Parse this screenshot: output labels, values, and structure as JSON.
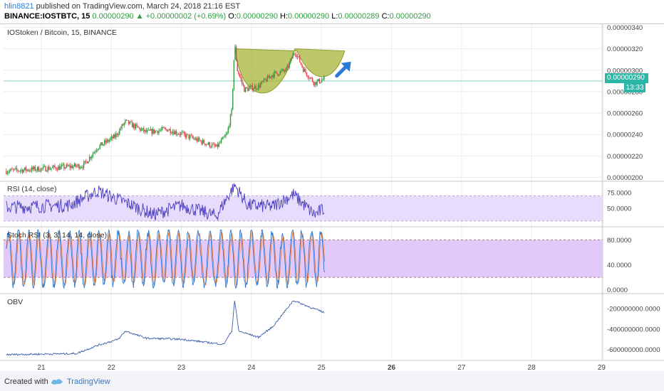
{
  "header": {
    "user": "hlin8821",
    "published": "published on TradingView.com, March 24, 2018 21:16 EST",
    "symbol": "BINANCE:IOSTBTC, 15",
    "price": "0.00000290",
    "change": "+0.00000002 (+0.69%)",
    "o_label": "O:",
    "o_value": "0.00000290",
    "h_label": "H:",
    "h_value": "0.00000290",
    "l_label": "L:",
    "l_value": "0.00000289",
    "c_label": "C:",
    "c_value": "0.00000290"
  },
  "footer": {
    "created": "Created with",
    "brand": "TradingView"
  },
  "price_tag": "0.00000290",
  "time_tag": "13:33",
  "colors": {
    "up": "#2e9d3f",
    "down": "#e0454f",
    "rsi_line": "#4a3fc2",
    "rsi_band": "#e7dcfb",
    "stoch_band": "#e2c9fb",
    "stoch_k": "#2a7ad6",
    "stoch_d": "#e07a3c",
    "obv_line": "#3b5ea8",
    "cup": "#a8b53a",
    "arrow": "#2a7ad6",
    "grid": "#ececec"
  },
  "chart_data": [
    {
      "type": "candlestick",
      "title": "IOStoken / Bitcoin, 15, BINANCE",
      "x_ticks": [
        "21",
        "22",
        "23",
        "24",
        "25",
        "26",
        "27",
        "28",
        "29"
      ],
      "y_ticks": [
        "0.00000340",
        "0.00000320",
        "0.00000300",
        "0.00000280",
        "0.00000260",
        "0.00000240",
        "0.00000220",
        "0.00000200"
      ],
      "ylim": [
        1.97e-06,
        3.43e-06
      ],
      "last_price": 2.9e-06,
      "anchors": [
        {
          "day": 20.5,
          "price": 2.06e-06
        },
        {
          "day": 21.0,
          "price": 2.08e-06
        },
        {
          "day": 21.6,
          "price": 2.11e-06
        },
        {
          "day": 21.8,
          "price": 2.28e-06
        },
        {
          "day": 22.05,
          "price": 2.38e-06
        },
        {
          "day": 22.2,
          "price": 2.52e-06
        },
        {
          "day": 22.5,
          "price": 2.42e-06
        },
        {
          "day": 22.8,
          "price": 2.45e-06
        },
        {
          "day": 23.1,
          "price": 2.38e-06
        },
        {
          "day": 23.5,
          "price": 2.28e-06
        },
        {
          "day": 23.65,
          "price": 2.4e-06
        },
        {
          "day": 23.72,
          "price": 2.62e-06
        },
        {
          "day": 23.76,
          "price": 3.25e-06
        },
        {
          "day": 23.8,
          "price": 3e-06
        },
        {
          "day": 23.9,
          "price": 2.82e-06
        },
        {
          "day": 24.1,
          "price": 2.85e-06
        },
        {
          "day": 24.3,
          "price": 2.96e-06
        },
        {
          "day": 24.5,
          "price": 3e-06
        },
        {
          "day": 24.62,
          "price": 3.18e-06
        },
        {
          "day": 24.75,
          "price": 3e-06
        },
        {
          "day": 24.9,
          "price": 2.88e-06
        },
        {
          "day": 25.05,
          "price": 2.92e-06
        }
      ]
    },
    {
      "type": "line",
      "title": "RSI (14, close)",
      "y_ticks": [
        "75.0000",
        "50.0000"
      ],
      "ylim": [
        22,
        92
      ],
      "band": [
        30,
        70
      ],
      "anchors": [
        {
          "day": 20.5,
          "value": 52
        },
        {
          "day": 21.4,
          "value": 55
        },
        {
          "day": 21.8,
          "value": 78
        },
        {
          "day": 22.3,
          "value": 55
        },
        {
          "day": 22.6,
          "value": 40
        },
        {
          "day": 23.0,
          "value": 55
        },
        {
          "day": 23.5,
          "value": 38
        },
        {
          "day": 23.76,
          "value": 87
        },
        {
          "day": 23.95,
          "value": 55
        },
        {
          "day": 24.3,
          "value": 53
        },
        {
          "day": 24.6,
          "value": 72
        },
        {
          "day": 24.9,
          "value": 40
        },
        {
          "day": 25.05,
          "value": 50
        }
      ]
    },
    {
      "type": "line",
      "title": "Stoch RSI (3, 3, 14, 14, close)",
      "y_ticks": [
        "80.0000",
        "40.0000",
        "0.0000"
      ],
      "ylim": [
        -5,
        100
      ],
      "band": [
        20,
        80
      ],
      "series": [
        {
          "values_hint": "oscillating between ~5 and ~95 over days 20.5-25.05"
        },
        {
          "values_hint": "smoothed, lagging copy of first series"
        }
      ]
    },
    {
      "type": "line",
      "title": "OBV",
      "y_ticks": [
        "-200000000.0000",
        "-400000000.0000",
        "-600000000.0000"
      ],
      "ylim": [
        -700000000,
        -60000000
      ],
      "anchors": [
        {
          "day": 20.5,
          "value": -650000000
        },
        {
          "day": 21.5,
          "value": -640000000
        },
        {
          "day": 21.8,
          "value": -560000000
        },
        {
          "day": 22.1,
          "value": -500000000
        },
        {
          "day": 22.2,
          "value": -420000000
        },
        {
          "day": 22.5,
          "value": -490000000
        },
        {
          "day": 23.0,
          "value": -500000000
        },
        {
          "day": 23.6,
          "value": -550000000
        },
        {
          "day": 23.72,
          "value": -420000000
        },
        {
          "day": 23.76,
          "value": -120000000
        },
        {
          "day": 23.82,
          "value": -420000000
        },
        {
          "day": 24.1,
          "value": -480000000
        },
        {
          "day": 24.3,
          "value": -380000000
        },
        {
          "day": 24.6,
          "value": -120000000
        },
        {
          "day": 24.85,
          "value": -190000000
        },
        {
          "day": 25.05,
          "value": -240000000
        }
      ]
    }
  ]
}
